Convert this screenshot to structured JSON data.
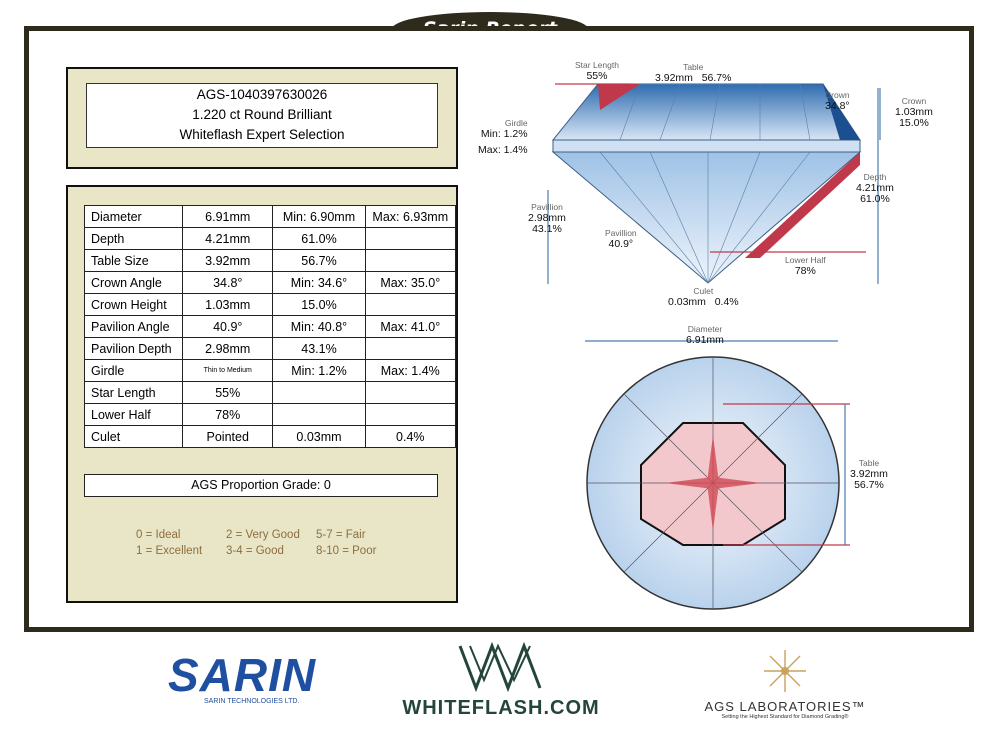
{
  "report_title": "Sarin Report",
  "stone": {
    "id": "AGS-1040397630026",
    "weight_shape": "1.220 ct Round Brilliant",
    "collection": "Whiteflash Expert Selection"
  },
  "specs": [
    {
      "label": "Diameter",
      "value": "6.91mm",
      "c2": "Min: 6.90mm",
      "c3": "Max: 6.93mm"
    },
    {
      "label": "Depth",
      "value": "4.21mm",
      "c2": "61.0%",
      "c3": ""
    },
    {
      "label": "Table Size",
      "value": "3.92mm",
      "c2": "56.7%",
      "c3": ""
    },
    {
      "label": "Crown Angle",
      "value": "34.8°",
      "c2": "Min: 34.6°",
      "c3": "Max: 35.0°"
    },
    {
      "label": "Crown Height",
      "value": "1.03mm",
      "c2": "15.0%",
      "c3": ""
    },
    {
      "label": "Pavilion Angle",
      "value": "40.9°",
      "c2": "Min: 40.8°",
      "c3": "Max: 41.0°"
    },
    {
      "label": "Pavilion Depth",
      "value": "2.98mm",
      "c2": "43.1%",
      "c3": ""
    },
    {
      "label": "Girdle",
      "value": "Thin to Medium",
      "c2": "Min: 1.2%",
      "c3": "Max: 1.4%"
    },
    {
      "label": "Star Length",
      "value": "55%",
      "c2": "",
      "c3": ""
    },
    {
      "label": "Lower Half",
      "value": "78%",
      "c2": "",
      "c3": ""
    },
    {
      "label": "Culet",
      "value": "Pointed",
      "c2": "0.03mm",
      "c3": "0.4%"
    }
  ],
  "proportion_grade": "AGS Proportion Grade: 0",
  "grade_legend": {
    "col1": [
      "0 = Ideal",
      "1 = Excellent"
    ],
    "col2": [
      "2 = Very Good",
      "3-4 = Good"
    ],
    "col3": [
      "5-7 = Fair",
      "8-10 = Poor"
    ]
  },
  "diagram": {
    "star_length": {
      "name": "Star Length",
      "value": "55%"
    },
    "table": {
      "name": "Table",
      "mm": "3.92mm",
      "pct": "56.7%"
    },
    "crown_angle": {
      "name": "Crown",
      "value": "34.8°"
    },
    "crown_height": {
      "name": "Crown",
      "mm": "1.03mm",
      "pct": "15.0%"
    },
    "girdle": {
      "name": "Girdle",
      "min": "Min: 1.2%",
      "max": "Max: 1.4%"
    },
    "depth": {
      "name": "Depth",
      "mm": "4.21mm",
      "pct": "61.0%"
    },
    "pavilion_depth": {
      "name": "Pavillion",
      "mm": "2.98mm",
      "pct": "43.1%"
    },
    "pavilion_angle": {
      "name": "Pavillion",
      "value": "40.9°"
    },
    "lower_half": {
      "name": "Lower Half",
      "value": "78%"
    },
    "culet": {
      "name": "Culet",
      "mm": "0.03mm",
      "pct": "0.4%"
    },
    "diameter": {
      "name": "Diameter",
      "value": "6.91mm"
    },
    "top_table": {
      "name": "Table",
      "mm": "3.92mm",
      "pct": "56.7%"
    }
  },
  "logos": {
    "sarin": "SARIN",
    "sarin_sub": "SARIN TECHNOLOGIES LTD.",
    "whiteflash": "WHITEFLASH.COM",
    "ags": "AGS LABORATORIES™",
    "ags_tagline": "Setting the Highest Standard for Diamond Grading®"
  },
  "colors": {
    "frame": "#2e2a1c",
    "panel": "#e9e6c8",
    "legend": "#8c6e3e",
    "facet_blue": "#3f7fc0",
    "facet_red": "#d0404a"
  }
}
